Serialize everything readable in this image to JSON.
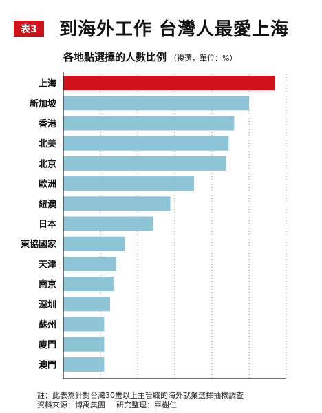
{
  "header": {
    "tag": "表3",
    "title": "到海外工作  台灣人最愛上海",
    "subtitle": "各地點選擇的人數比例",
    "unit_note": "（複選，單位：%）"
  },
  "colors": {
    "accent": "#d0121b",
    "bar": "#8ec5d6",
    "highlight_bar": "#d0121b"
  },
  "chart_data": {
    "type": "bar",
    "orientation": "horizontal",
    "categories": [
      "上海",
      "新加坡",
      "香港",
      "北美",
      "北京",
      "歐洲",
      "紐澳",
      "日本",
      "東協國家",
      "天津",
      "南京",
      "深圳",
      "蘇州",
      "廈門",
      "澳門"
    ],
    "values": [
      57,
      50,
      46,
      44.5,
      43.8,
      35.2,
      28.8,
      24.2,
      16.5,
      14.2,
      13.5,
      12.6,
      11,
      11,
      11
    ],
    "highlight_index": 0,
    "xlim": [
      0,
      60
    ],
    "xticks": [
      0,
      10,
      20,
      30,
      40,
      50,
      60
    ],
    "grid": true,
    "legend": "none"
  },
  "footer": {
    "note": "註：此表為針對台灣30歲以上主管職的海外就業選擇抽樣調查",
    "source": "資料來源：博禹集團",
    "compiled": "研究整理：辜樹仁"
  }
}
